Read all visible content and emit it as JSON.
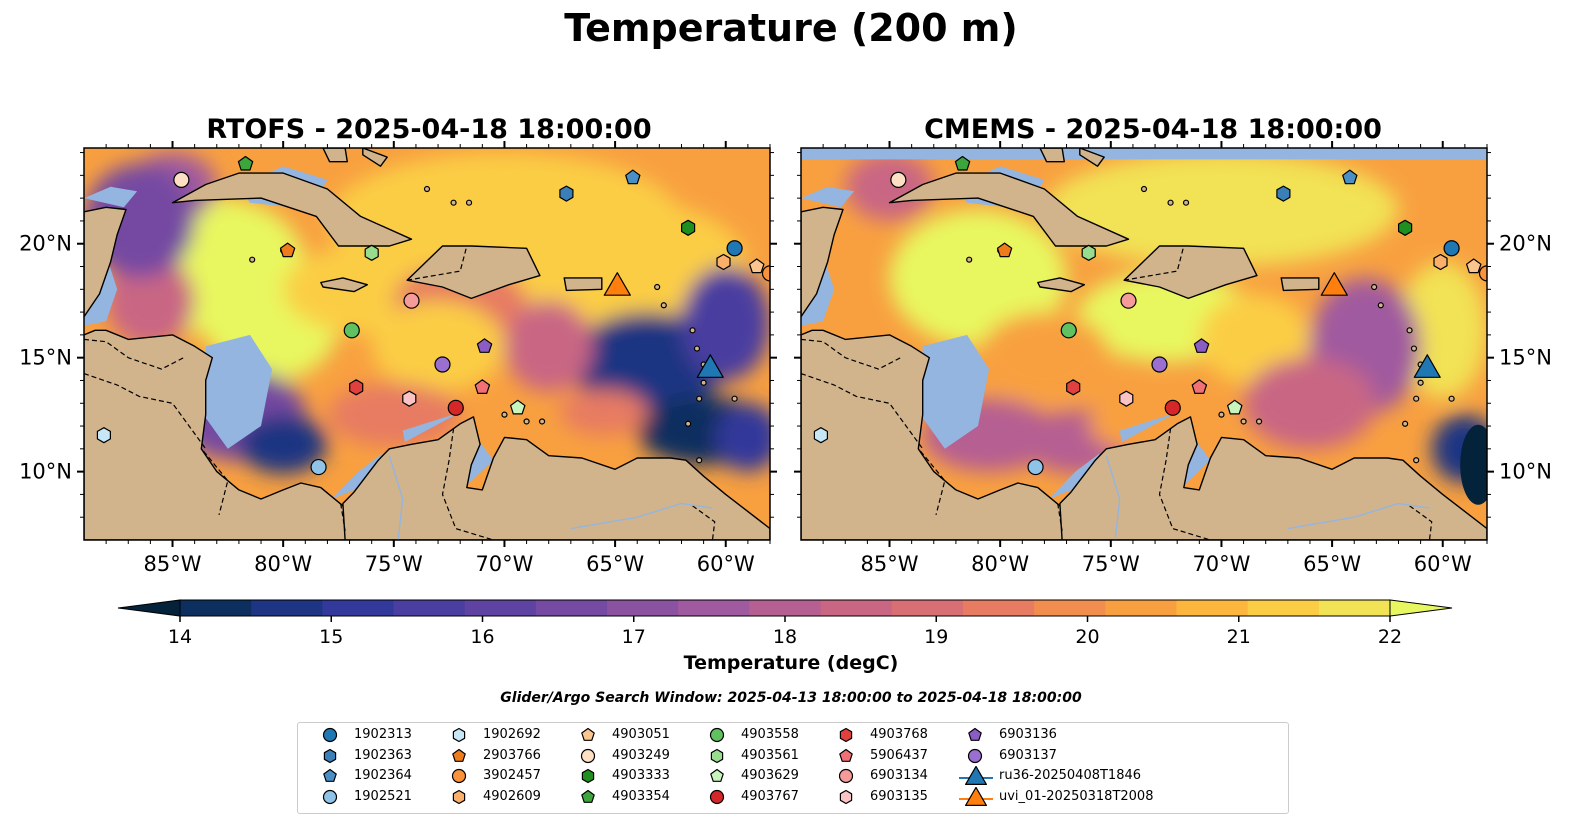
{
  "title": "Temperature (200 m)",
  "panels": [
    {
      "id": "rtofs",
      "title": "RTOFS - 2025-04-18 18:00:00"
    },
    {
      "id": "cmems",
      "title": "CMEMS - 2025-04-18 18:00:00"
    }
  ],
  "lon_ticks": [
    "85°W",
    "80°W",
    "75°W",
    "70°W",
    "65°W",
    "60°W"
  ],
  "lat_ticks": [
    "20°N",
    "15°N",
    "10°N"
  ],
  "colorbar": {
    "label": "Temperature (degC)",
    "ticks": [
      "14",
      "15",
      "16",
      "17",
      "18",
      "19",
      "20",
      "21",
      "22"
    ],
    "range": [
      14,
      22
    ],
    "colors": [
      "#04223a",
      "#0c2f5f",
      "#1d3582",
      "#33399a",
      "#4a3ea0",
      "#5e43a2",
      "#754aa2",
      "#8b52a2",
      "#a05a9f",
      "#b65f93",
      "#c96684",
      "#d86f74",
      "#e77c62",
      "#f08d4f",
      "#f8a040",
      "#fcb63e",
      "#fbcd45",
      "#f2e255",
      "#e8f75f"
    ]
  },
  "search_window": "Glider/Argo Search Window: 2025-04-13 18:00:00 to 2025-04-18 18:00:00",
  "legend": [
    {
      "label": "1902313",
      "shape": "circle",
      "color": "#1f77b4"
    },
    {
      "label": "1902363",
      "shape": "hexagon",
      "color": "#3a7fb8"
    },
    {
      "label": "1902364",
      "shape": "pentagon",
      "color": "#4a90c6"
    },
    {
      "label": "1902521",
      "shape": "circle",
      "color": "#8fc3e8"
    },
    {
      "label": "1902692",
      "shape": "hexagon",
      "color": "#c7e7f7"
    },
    {
      "label": "2903766",
      "shape": "pentagon",
      "color": "#f07b1a"
    },
    {
      "label": "3902457",
      "shape": "circle",
      "color": "#f9923a"
    },
    {
      "label": "4902609",
      "shape": "hexagon",
      "color": "#fab06a"
    },
    {
      "label": "4903051",
      "shape": "pentagon",
      "color": "#fbc58f"
    },
    {
      "label": "4903249",
      "shape": "circle",
      "color": "#fde0c3"
    },
    {
      "label": "4903333",
      "shape": "hexagon",
      "color": "#1f8f1f"
    },
    {
      "label": "4903354",
      "shape": "pentagon",
      "color": "#3ca63c"
    },
    {
      "label": "4903558",
      "shape": "circle",
      "color": "#5fc15f"
    },
    {
      "label": "4903561",
      "shape": "hexagon",
      "color": "#98dc8e"
    },
    {
      "label": "4903629",
      "shape": "pentagon",
      "color": "#c8f5bd"
    },
    {
      "label": "4903767",
      "shape": "circle",
      "color": "#d62728"
    },
    {
      "label": "4903768",
      "shape": "hexagon",
      "color": "#e0413f"
    },
    {
      "label": "5906437",
      "shape": "pentagon",
      "color": "#f07075"
    },
    {
      "label": "6903134",
      "shape": "circle",
      "color": "#f59b9a"
    },
    {
      "label": "6903135",
      "shape": "hexagon",
      "color": "#fbc3c3"
    },
    {
      "label": "6903136",
      "shape": "pentagon",
      "color": "#8a5cc4"
    },
    {
      "label": "6903137",
      "shape": "circle",
      "color": "#9a6fd0"
    },
    {
      "label": "ru36-20250408T1846",
      "shape": "triangle",
      "color": "#1f77b4"
    },
    {
      "label": "uvi_01-20250318T2008",
      "shape": "triangle",
      "color": "#ff7f0e"
    }
  ],
  "markers": [
    {
      "id": "1902692",
      "lon": -88.1,
      "lat": 11.6,
      "shape": "hexagon",
      "color": "#c7e7f7"
    },
    {
      "id": "4903249",
      "lon": -84.6,
      "lat": 22.8,
      "shape": "circle",
      "color": "#fde0c3"
    },
    {
      "id": "4903354",
      "lon": -81.7,
      "lat": 23.5,
      "shape": "pentagon",
      "color": "#3ca63c"
    },
    {
      "id": "2903766",
      "lon": -79.8,
      "lat": 19.7,
      "shape": "pentagon",
      "color": "#f07b1a"
    },
    {
      "id": "4903561",
      "lon": -76.0,
      "lat": 19.6,
      "shape": "hexagon",
      "color": "#98dc8e"
    },
    {
      "id": "4903558",
      "lon": -76.9,
      "lat": 16.2,
      "shape": "circle",
      "color": "#5fc15f"
    },
    {
      "id": "6903134",
      "lon": -74.2,
      "lat": 17.5,
      "shape": "circle",
      "color": "#f59b9a"
    },
    {
      "id": "4903768",
      "lon": -76.7,
      "lat": 13.7,
      "shape": "hexagon",
      "color": "#e0413f"
    },
    {
      "id": "6903135",
      "lon": -74.3,
      "lat": 13.2,
      "shape": "hexagon",
      "color": "#fbc3c3"
    },
    {
      "id": "6903137",
      "lon": -72.8,
      "lat": 14.7,
      "shape": "circle",
      "color": "#9a6fd0"
    },
    {
      "id": "6903136",
      "lon": -70.9,
      "lat": 15.5,
      "shape": "pentagon",
      "color": "#8a5cc4"
    },
    {
      "id": "5906437",
      "lon": -71.0,
      "lat": 13.7,
      "shape": "pentagon",
      "color": "#f07075"
    },
    {
      "id": "4903767",
      "lon": -72.2,
      "lat": 12.8,
      "shape": "circle",
      "color": "#d62728"
    },
    {
      "id": "4903629",
      "lon": -69.4,
      "lat": 12.8,
      "shape": "pentagon",
      "color": "#c8f5bd"
    },
    {
      "id": "1902521",
      "lon": -78.4,
      "lat": 10.2,
      "shape": "circle",
      "color": "#8fc3e8"
    },
    {
      "id": "1902363",
      "lon": -67.2,
      "lat": 22.2,
      "shape": "hexagon",
      "color": "#3a7fb8"
    },
    {
      "id": "1902364",
      "lon": -64.2,
      "lat": 22.9,
      "shape": "pentagon",
      "color": "#4a90c6"
    },
    {
      "id": "4903333",
      "lon": -61.7,
      "lat": 20.7,
      "shape": "hexagon",
      "color": "#1f8f1f"
    },
    {
      "id": "1902313",
      "lon": -59.6,
      "lat": 19.8,
      "shape": "circle",
      "color": "#1f77b4"
    },
    {
      "id": "4903051",
      "lon": -58.6,
      "lat": 19.0,
      "shape": "pentagon",
      "color": "#fbc58f"
    },
    {
      "id": "3902457",
      "lon": -58.0,
      "lat": 18.7,
      "shape": "circle",
      "color": "#f9923a"
    },
    {
      "id": "4902609",
      "lon": -60.1,
      "lat": 19.2,
      "shape": "hexagon",
      "color": "#fab06a"
    },
    {
      "id": "uvi_01-20250318T2008",
      "lon": -64.9,
      "lat": 18.2,
      "shape": "triangle",
      "color": "#ff7f0e"
    },
    {
      "id": "ru36-20250408T1846",
      "lon": -60.7,
      "lat": 14.6,
      "shape": "triangle",
      "color": "#1f77b4"
    }
  ]
}
